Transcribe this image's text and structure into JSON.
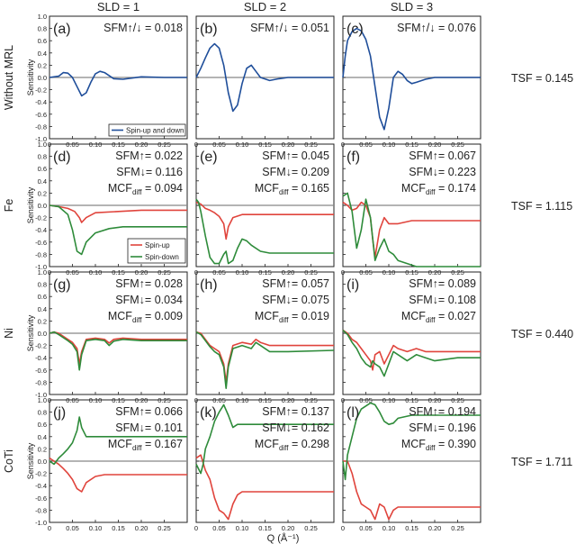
{
  "figure": {
    "column_headers": [
      "SLD = 1",
      "SLD = 2",
      "SLD = 3"
    ],
    "row_labels": [
      "Without MRL",
      "Fe",
      "Ni",
      "CoTi"
    ],
    "ylabel": "Sensitivity",
    "xlabel": "Q (Å⁻¹)",
    "tsf": [
      "TSF = 0.145",
      "TSF = 1.115",
      "TSF = 0.440",
      "TSF = 1.711"
    ],
    "legend_both": "Spin-up and down",
    "legend_up": "Spin-up",
    "legend_down": "Spin-down",
    "colors": {
      "both": "#1f4e9a",
      "up": "#e0443c",
      "down": "#2e8b3a",
      "zero": "#888888"
    }
  },
  "chart_data": [
    {
      "type": "line",
      "panel": "(a)",
      "xlim": [
        0,
        0.3
      ],
      "ylim": [
        -1,
        1
      ],
      "x_ticks": [
        "0",
        "0.05",
        "0.10",
        "0.15",
        "0.20",
        "0.25"
      ],
      "y_ticks": [
        "1.0",
        "0.8",
        "0.6",
        "0.4",
        "0.2",
        "0.0",
        "-0.2",
        "-0.4",
        "-0.6",
        "-0.8",
        "-1.0"
      ],
      "annotations": [
        "SFM↑/↓ = 0.018"
      ],
      "series": [
        {
          "name": "Spin-up and down",
          "color": "both",
          "x": [
            0,
            0.02,
            0.03,
            0.04,
            0.05,
            0.06,
            0.07,
            0.08,
            0.09,
            0.1,
            0.11,
            0.12,
            0.14,
            0.16,
            0.2,
            0.25,
            0.3
          ],
          "y": [
            0,
            0.02,
            0.08,
            0.07,
            0.0,
            -0.15,
            -0.3,
            -0.25,
            -0.08,
            0.06,
            0.1,
            0.08,
            -0.02,
            -0.03,
            0.01,
            0.0,
            0.0
          ]
        }
      ]
    },
    {
      "type": "line",
      "panel": "(b)",
      "xlim": [
        0,
        0.3
      ],
      "ylim": [
        -1,
        1
      ],
      "x_ticks": [
        "0",
        "0.05",
        "0.10",
        "0.15",
        "0.20",
        "0.25"
      ],
      "y_ticks": [
        "1.0",
        "0.8",
        "0.6",
        "0.4",
        "0.2",
        "0.0",
        "-0.2",
        "-0.4",
        "-0.6",
        "-0.8",
        "-1.0"
      ],
      "annotations": [
        "SFM↑/↓ = 0.051"
      ],
      "series": [
        {
          "name": "",
          "color": "both",
          "x": [
            0,
            0.01,
            0.02,
            0.03,
            0.04,
            0.05,
            0.06,
            0.07,
            0.08,
            0.09,
            0.1,
            0.11,
            0.12,
            0.13,
            0.14,
            0.16,
            0.18,
            0.2,
            0.25,
            0.3
          ],
          "y": [
            0,
            0.15,
            0.32,
            0.48,
            0.55,
            0.48,
            0.2,
            -0.25,
            -0.55,
            -0.45,
            -0.1,
            0.15,
            0.2,
            0.1,
            0.0,
            -0.05,
            -0.02,
            0.0,
            0.0,
            0.0
          ]
        }
      ]
    },
    {
      "type": "line",
      "panel": "(c)",
      "xlim": [
        0,
        0.3
      ],
      "ylim": [
        -1,
        1
      ],
      "x_ticks": [
        "0",
        "0.05",
        "0.10",
        "0.15",
        "0.20",
        "0.25"
      ],
      "y_ticks": [
        "1.0",
        "0.8",
        "0.6",
        "0.4",
        "0.2",
        "0.0",
        "-0.2",
        "-0.4",
        "-0.6",
        "-0.8",
        "-1.0"
      ],
      "annotations": [
        "SFM↑/↓ = 0.076"
      ],
      "series": [
        {
          "name": "",
          "color": "both",
          "x": [
            0,
            0.005,
            0.01,
            0.02,
            0.03,
            0.04,
            0.05,
            0.06,
            0.07,
            0.08,
            0.09,
            0.1,
            0.11,
            0.12,
            0.13,
            0.14,
            0.15,
            0.16,
            0.18,
            0.2,
            0.25,
            0.3
          ],
          "y": [
            0,
            0.35,
            0.6,
            0.75,
            0.8,
            0.76,
            0.62,
            0.35,
            -0.15,
            -0.65,
            -0.85,
            -0.5,
            0.0,
            0.1,
            0.05,
            -0.05,
            -0.1,
            -0.08,
            -0.03,
            0.0,
            0.0,
            0.0
          ]
        }
      ]
    },
    {
      "type": "line",
      "panel": "(d)",
      "xlim": [
        0,
        0.3
      ],
      "ylim": [
        -1,
        1
      ],
      "annotations": [
        "SFM↑= 0.022",
        "SFM↓= 0.116",
        "MCFdiff = 0.094"
      ],
      "series": [
        {
          "name": "Spin-up",
          "color": "up",
          "x": [
            0,
            0.02,
            0.04,
            0.055,
            0.065,
            0.07,
            0.08,
            0.1,
            0.15,
            0.2,
            0.3
          ],
          "y": [
            0,
            -0.02,
            -0.05,
            -0.1,
            -0.2,
            -0.28,
            -0.2,
            -0.12,
            -0.1,
            -0.08,
            -0.08
          ]
        },
        {
          "name": "Spin-down",
          "color": "down",
          "x": [
            0,
            0.02,
            0.04,
            0.05,
            0.06,
            0.07,
            0.08,
            0.1,
            0.13,
            0.16,
            0.2,
            0.3
          ],
          "y": [
            0,
            -0.02,
            -0.15,
            -0.4,
            -0.75,
            -0.8,
            -0.6,
            -0.45,
            -0.38,
            -0.35,
            -0.35,
            -0.35
          ]
        }
      ]
    },
    {
      "type": "line",
      "panel": "(e)",
      "xlim": [
        0,
        0.3
      ],
      "ylim": [
        -1,
        1
      ],
      "annotations": [
        "SFM↑= 0.045",
        "SFM↓= 0.209",
        "MCFdiff = 0.165"
      ],
      "series": [
        {
          "name": "",
          "color": "up",
          "x": [
            0,
            0.01,
            0.02,
            0.03,
            0.04,
            0.05,
            0.06,
            0.065,
            0.07,
            0.08,
            0.1,
            0.15,
            0.2,
            0.3
          ],
          "y": [
            0.05,
            0.02,
            -0.05,
            -0.08,
            -0.12,
            -0.18,
            -0.3,
            -0.55,
            -0.35,
            -0.2,
            -0.15,
            -0.15,
            -0.15,
            -0.15
          ]
        },
        {
          "name": "",
          "color": "down",
          "x": [
            0,
            0.005,
            0.01,
            0.02,
            0.03,
            0.04,
            0.05,
            0.06,
            0.065,
            0.07,
            0.08,
            0.09,
            0.1,
            0.11,
            0.12,
            0.14,
            0.16,
            0.2,
            0.3
          ],
          "y": [
            0.1,
            0.05,
            -0.1,
            -0.5,
            -0.85,
            -0.95,
            -0.95,
            -0.8,
            -0.75,
            -0.95,
            -0.9,
            -0.7,
            -0.55,
            -0.58,
            -0.65,
            -0.75,
            -0.78,
            -0.78,
            -0.78
          ]
        }
      ]
    },
    {
      "type": "line",
      "panel": "(f)",
      "xlim": [
        0,
        0.3
      ],
      "ylim": [
        -1,
        1
      ],
      "annotations": [
        "SFM↑= 0.067",
        "SFM↓= 0.223",
        "MCFdiff = 0.174"
      ],
      "series": [
        {
          "name": "",
          "color": "up",
          "x": [
            0,
            0.01,
            0.02,
            0.03,
            0.04,
            0.05,
            0.06,
            0.065,
            0.07,
            0.08,
            0.09,
            0.1,
            0.12,
            0.15,
            0.2,
            0.3
          ],
          "y": [
            0.05,
            0.0,
            -0.08,
            -0.05,
            0.05,
            0.0,
            -0.2,
            -0.55,
            -0.85,
            -0.4,
            -0.2,
            -0.3,
            -0.3,
            -0.25,
            -0.25,
            -0.25
          ]
        },
        {
          "name": "",
          "color": "down",
          "x": [
            0,
            0.01,
            0.02,
            0.03,
            0.04,
            0.05,
            0.06,
            0.07,
            0.08,
            0.09,
            0.1,
            0.11,
            0.12,
            0.14,
            0.16,
            0.2,
            0.3
          ],
          "y": [
            0.15,
            0.2,
            -0.1,
            -0.7,
            -0.4,
            0.1,
            -0.2,
            -0.9,
            -0.7,
            -0.55,
            -0.75,
            -0.8,
            -0.9,
            -0.95,
            -1.0,
            -1.0,
            -1.0
          ]
        }
      ]
    },
    {
      "type": "line",
      "panel": "(g)",
      "xlim": [
        0,
        0.3
      ],
      "ylim": [
        -1,
        1
      ],
      "annotations": [
        "SFM↑= 0.028",
        "SFM↓= 0.034",
        "MCFdiff = 0.009"
      ],
      "series": [
        {
          "name": "",
          "color": "up",
          "x": [
            0,
            0.01,
            0.02,
            0.04,
            0.05,
            0.06,
            0.065,
            0.07,
            0.08,
            0.1,
            0.12,
            0.13,
            0.14,
            0.16,
            0.2,
            0.3
          ],
          "y": [
            0,
            0.02,
            0.0,
            -0.1,
            -0.15,
            -0.25,
            -0.5,
            -0.3,
            -0.1,
            -0.08,
            -0.1,
            -0.16,
            -0.1,
            -0.08,
            -0.1,
            -0.1
          ]
        },
        {
          "name": "",
          "color": "down",
          "x": [
            0,
            0.01,
            0.02,
            0.04,
            0.05,
            0.06,
            0.065,
            0.07,
            0.08,
            0.1,
            0.12,
            0.13,
            0.14,
            0.16,
            0.2,
            0.3
          ],
          "y": [
            0,
            0.02,
            -0.02,
            -0.12,
            -0.18,
            -0.3,
            -0.6,
            -0.35,
            -0.12,
            -0.1,
            -0.12,
            -0.2,
            -0.13,
            -0.1,
            -0.12,
            -0.12
          ]
        }
      ]
    },
    {
      "type": "line",
      "panel": "(h)",
      "xlim": [
        0,
        0.3
      ],
      "ylim": [
        -1,
        1
      ],
      "annotations": [
        "SFM↑= 0.057",
        "SFM↓= 0.075",
        "MCFdiff = 0.019"
      ],
      "series": [
        {
          "name": "",
          "color": "up",
          "x": [
            0,
            0.01,
            0.02,
            0.03,
            0.04,
            0.05,
            0.06,
            0.065,
            0.07,
            0.08,
            0.1,
            0.12,
            0.13,
            0.14,
            0.16,
            0.2,
            0.3
          ],
          "y": [
            0.02,
            0.0,
            -0.1,
            -0.2,
            -0.25,
            -0.3,
            -0.5,
            -0.8,
            -0.5,
            -0.2,
            -0.15,
            -0.18,
            -0.1,
            -0.15,
            -0.2,
            -0.2,
            -0.2
          ]
        },
        {
          "name": "",
          "color": "down",
          "x": [
            0,
            0.01,
            0.02,
            0.03,
            0.04,
            0.05,
            0.06,
            0.065,
            0.07,
            0.08,
            0.1,
            0.12,
            0.13,
            0.14,
            0.16,
            0.2,
            0.3
          ],
          "y": [
            0.02,
            -0.02,
            -0.12,
            -0.22,
            -0.3,
            -0.35,
            -0.55,
            -0.9,
            -0.55,
            -0.25,
            -0.2,
            -0.25,
            -0.15,
            -0.2,
            -0.3,
            -0.3,
            -0.28
          ]
        }
      ]
    },
    {
      "type": "line",
      "panel": "(i)",
      "xlim": [
        0,
        0.3
      ],
      "ylim": [
        -1,
        1
      ],
      "annotations": [
        "SFM↑= 0.089",
        "SFM↓= 0.108",
        "MCFdiff = 0.027"
      ],
      "series": [
        {
          "name": "",
          "color": "up",
          "x": [
            0,
            0.01,
            0.02,
            0.03,
            0.04,
            0.05,
            0.06,
            0.065,
            0.07,
            0.08,
            0.09,
            0.1,
            0.11,
            0.12,
            0.14,
            0.16,
            0.18,
            0.2,
            0.25,
            0.3
          ],
          "y": [
            0.05,
            0.0,
            -0.1,
            -0.15,
            -0.25,
            -0.35,
            -0.45,
            -0.6,
            -0.35,
            -0.3,
            -0.5,
            -0.35,
            -0.2,
            -0.25,
            -0.3,
            -0.25,
            -0.3,
            -0.3,
            -0.3,
            -0.3
          ]
        },
        {
          "name": "",
          "color": "down",
          "x": [
            0,
            0.01,
            0.02,
            0.03,
            0.04,
            0.05,
            0.06,
            0.065,
            0.07,
            0.08,
            0.09,
            0.1,
            0.11,
            0.12,
            0.14,
            0.16,
            0.18,
            0.2,
            0.25,
            0.3
          ],
          "y": [
            0.05,
            -0.02,
            -0.15,
            -0.25,
            -0.4,
            -0.5,
            -0.55,
            -0.45,
            -0.5,
            -0.55,
            -0.7,
            -0.5,
            -0.3,
            -0.35,
            -0.45,
            -0.35,
            -0.4,
            -0.45,
            -0.4,
            -0.4
          ]
        }
      ]
    },
    {
      "type": "line",
      "panel": "(j)",
      "xlim": [
        0,
        0.3
      ],
      "ylim": [
        -1,
        1
      ],
      "annotations": [
        "SFM↑= 0.066",
        "SFM↓= 0.101",
        "MCFdiff = 0.167"
      ],
      "series": [
        {
          "name": "",
          "color": "up",
          "x": [
            0,
            0.01,
            0.02,
            0.03,
            0.04,
            0.05,
            0.06,
            0.07,
            0.08,
            0.1,
            0.12,
            0.15,
            0.2,
            0.3
          ],
          "y": [
            0.05,
            0.0,
            -0.05,
            -0.12,
            -0.2,
            -0.3,
            -0.45,
            -0.5,
            -0.35,
            -0.25,
            -0.22,
            -0.22,
            -0.22,
            -0.22
          ]
        },
        {
          "name": "",
          "color": "down",
          "x": [
            0,
            0.01,
            0.02,
            0.03,
            0.04,
            0.05,
            0.06,
            0.065,
            0.07,
            0.08,
            0.1,
            0.12,
            0.15,
            0.2,
            0.3
          ],
          "y": [
            0.0,
            -0.05,
            0.05,
            0.12,
            0.2,
            0.3,
            0.5,
            0.72,
            0.55,
            0.4,
            0.4,
            0.4,
            0.4,
            0.4,
            0.4
          ]
        }
      ]
    },
    {
      "type": "line",
      "panel": "(k)",
      "xlim": [
        0,
        0.3
      ],
      "ylim": [
        -1,
        1
      ],
      "annotations": [
        "SFM↑= 0.137",
        "SFM↓= 0.162",
        "MCFdiff = 0.298"
      ],
      "series": [
        {
          "name": "",
          "color": "up",
          "x": [
            0,
            0.01,
            0.02,
            0.03,
            0.04,
            0.05,
            0.06,
            0.07,
            0.08,
            0.09,
            0.1,
            0.12,
            0.15,
            0.2,
            0.3
          ],
          "y": [
            0.05,
            0.1,
            -0.15,
            -0.3,
            -0.6,
            -0.8,
            -0.85,
            -0.95,
            -0.7,
            -0.55,
            -0.5,
            -0.5,
            -0.5,
            -0.5,
            -0.5
          ]
        },
        {
          "name": "",
          "color": "down",
          "x": [
            0,
            0.01,
            0.015,
            0.02,
            0.03,
            0.04,
            0.05,
            0.06,
            0.07,
            0.08,
            0.09,
            0.1,
            0.12,
            0.15,
            0.2,
            0.3
          ],
          "y": [
            -0.05,
            -0.2,
            -0.05,
            0.2,
            0.4,
            0.65,
            0.8,
            0.92,
            0.75,
            0.55,
            0.6,
            0.6,
            0.6,
            0.6,
            0.6,
            0.6
          ]
        }
      ]
    },
    {
      "type": "line",
      "panel": "(l)",
      "xlim": [
        0,
        0.3
      ],
      "ylim": [
        -1,
        1
      ],
      "annotations": [
        "SFM↑= 0.194",
        "SFM↓= 0.196",
        "MCFdiff = 0.390"
      ],
      "series": [
        {
          "name": "",
          "color": "up",
          "x": [
            0,
            0.01,
            0.02,
            0.03,
            0.04,
            0.05,
            0.06,
            0.07,
            0.08,
            0.09,
            0.1,
            0.11,
            0.12,
            0.15,
            0.2,
            0.3
          ],
          "y": [
            0.0,
            0.0,
            -0.2,
            -0.5,
            -0.7,
            -0.75,
            -0.8,
            -0.95,
            -0.7,
            -0.75,
            -0.95,
            -0.8,
            -0.75,
            -0.75,
            -0.75,
            -0.75
          ]
        },
        {
          "name": "",
          "color": "down",
          "x": [
            0,
            0.005,
            0.01,
            0.02,
            0.03,
            0.04,
            0.05,
            0.06,
            0.07,
            0.08,
            0.09,
            0.1,
            0.11,
            0.12,
            0.15,
            0.2,
            0.3
          ],
          "y": [
            0.0,
            -0.3,
            0.1,
            0.4,
            0.7,
            0.85,
            0.9,
            0.95,
            0.92,
            0.8,
            0.65,
            0.6,
            0.62,
            0.7,
            0.75,
            0.75,
            0.75
          ]
        }
      ]
    }
  ]
}
